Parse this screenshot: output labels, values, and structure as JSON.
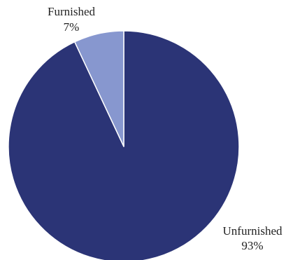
{
  "chart_data": {
    "type": "pie",
    "categories": [
      "Unfurnished",
      "Furnished"
    ],
    "values": [
      93,
      7
    ],
    "labels": [
      "93%",
      "7%"
    ],
    "colors": [
      "#2b3476",
      "#8797cf"
    ],
    "start_angle": "12 o'clock",
    "direction": "clockwise",
    "legend": "none"
  }
}
